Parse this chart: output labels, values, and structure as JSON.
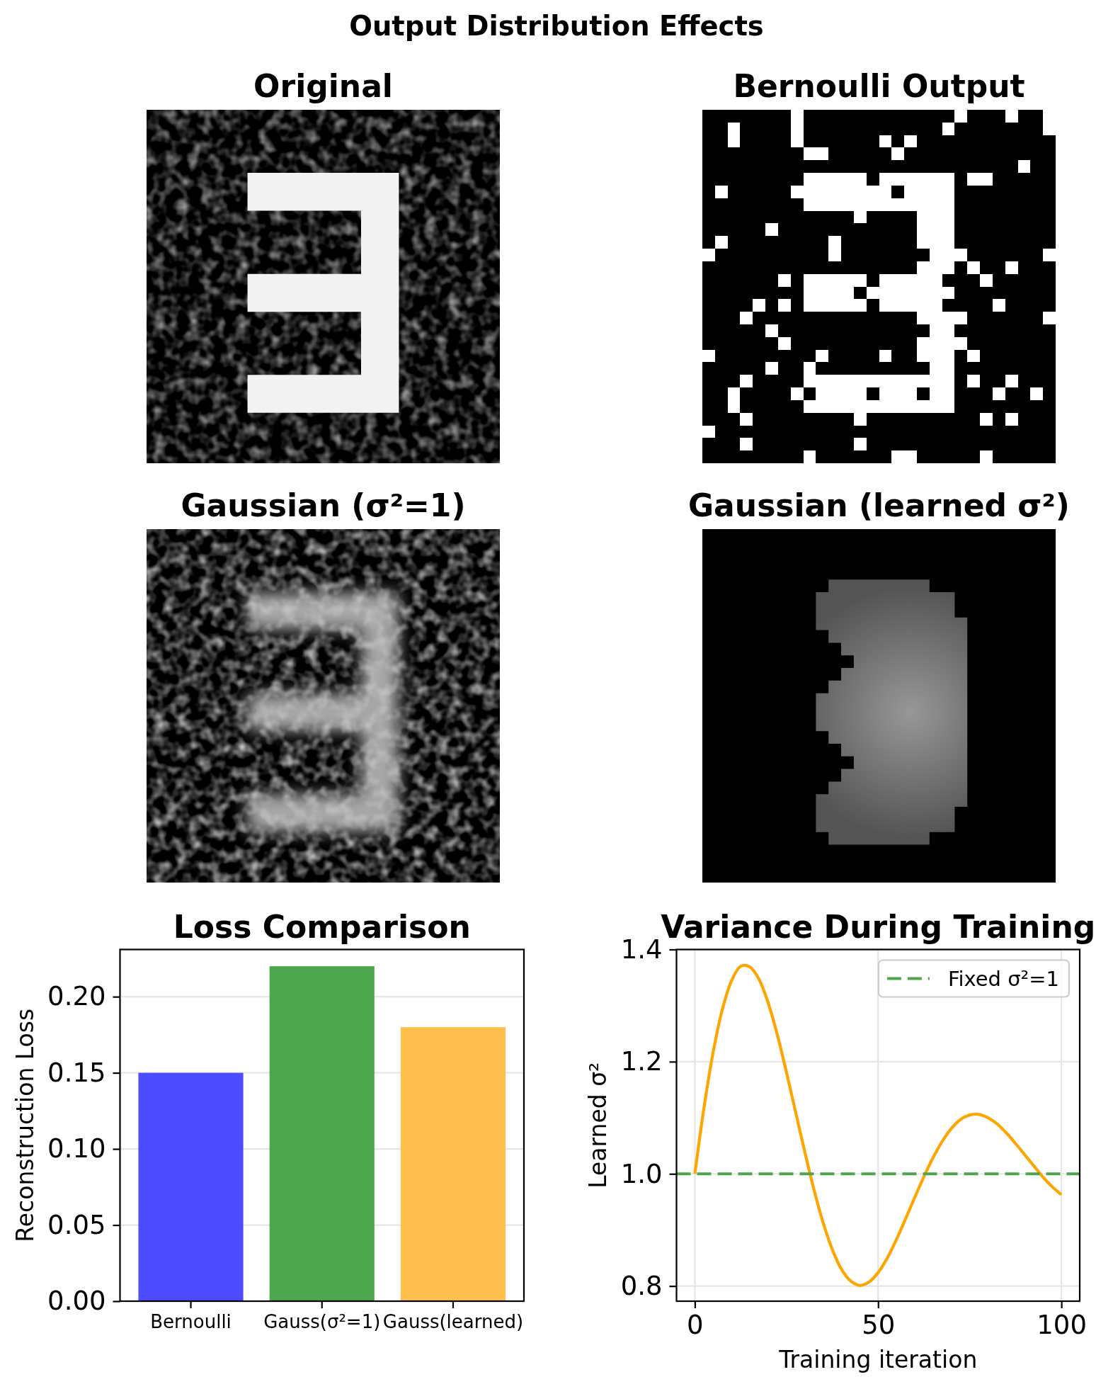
{
  "chart_data": [
    {
      "type": "other",
      "title": "Output Distribution Effects"
    },
    {
      "type": "other",
      "title": "Original"
    },
    {
      "type": "other",
      "title": "Bernoulli Output"
    },
    {
      "type": "other",
      "title": "Gaussian (σ²=1)"
    },
    {
      "type": "other",
      "title": "Gaussian (learned σ²)"
    },
    {
      "type": "bar",
      "title": "Loss Comparison",
      "categories": [
        "Bernoulli",
        "Gauss(σ²=1)",
        "Gauss(learned)"
      ],
      "values": [
        0.15,
        0.22,
        0.18
      ],
      "colors": [
        "#4d4dff",
        "#4da64d",
        "#ffc04d"
      ],
      "ylabel": "Reconstruction Loss",
      "ylim": [
        0,
        0.231
      ],
      "yticks": [
        {
          "value": 0,
          "label": "0.00"
        },
        {
          "value": 0.05,
          "label": "0.05"
        },
        {
          "value": 0.1,
          "label": "0.10"
        },
        {
          "value": 0.15,
          "label": "0.15"
        },
        {
          "value": 0.2,
          "label": "0.20"
        }
      ],
      "grid": "y"
    },
    {
      "type": "line",
      "title": "Variance During Training",
      "xlabel": "Training iteration",
      "ylabel": "Learned σ²",
      "x": [
        0,
        2.5,
        5,
        7.5,
        10,
        12.5,
        15,
        17.5,
        20,
        22.5,
        25,
        27.5,
        30,
        32.5,
        35,
        37.5,
        40,
        42.5,
        45,
        47.5,
        50,
        52.5,
        55,
        57.5,
        60,
        62.5,
        65,
        67.5,
        70,
        72.5,
        75,
        77.5,
        80,
        82.5,
        85,
        87.5,
        90,
        92.5,
        95,
        97.5,
        100
      ],
      "series": [
        {
          "color": "#ffa500",
          "values": [
            1.0,
            1.118,
            1.217,
            1.293,
            1.344,
            1.37,
            1.369,
            1.347,
            1.305,
            1.248,
            1.181,
            1.11,
            1.039,
            0.972,
            0.913,
            0.865,
            0.83,
            0.809,
            0.801,
            0.807,
            0.824,
            0.85,
            0.883,
            0.92,
            0.958,
            0.995,
            1.029,
            1.058,
            1.081,
            1.097,
            1.105,
            1.106,
            1.1,
            1.089,
            1.073,
            1.054,
            1.034,
            1.014,
            0.994,
            0.977,
            0.963
          ]
        }
      ],
      "xlim": [
        -5,
        105
      ],
      "xticks": [
        0,
        50,
        100
      ],
      "ylim": [
        0.773,
        1.4
      ],
      "yticks": [
        {
          "value": 0.8,
          "label": "0.8"
        },
        {
          "value": 1,
          "label": "1.0"
        },
        {
          "value": 1.2,
          "label": "1.2"
        },
        {
          "value": 1.4,
          "label": "1.4"
        }
      ],
      "ref_lines": [
        {
          "axis": "y",
          "value": 1,
          "label": "Fixed σ²=1",
          "color": "#4da64d",
          "line_style": "dashed"
        }
      ],
      "grid": true,
      "legend": "top right"
    }
  ]
}
